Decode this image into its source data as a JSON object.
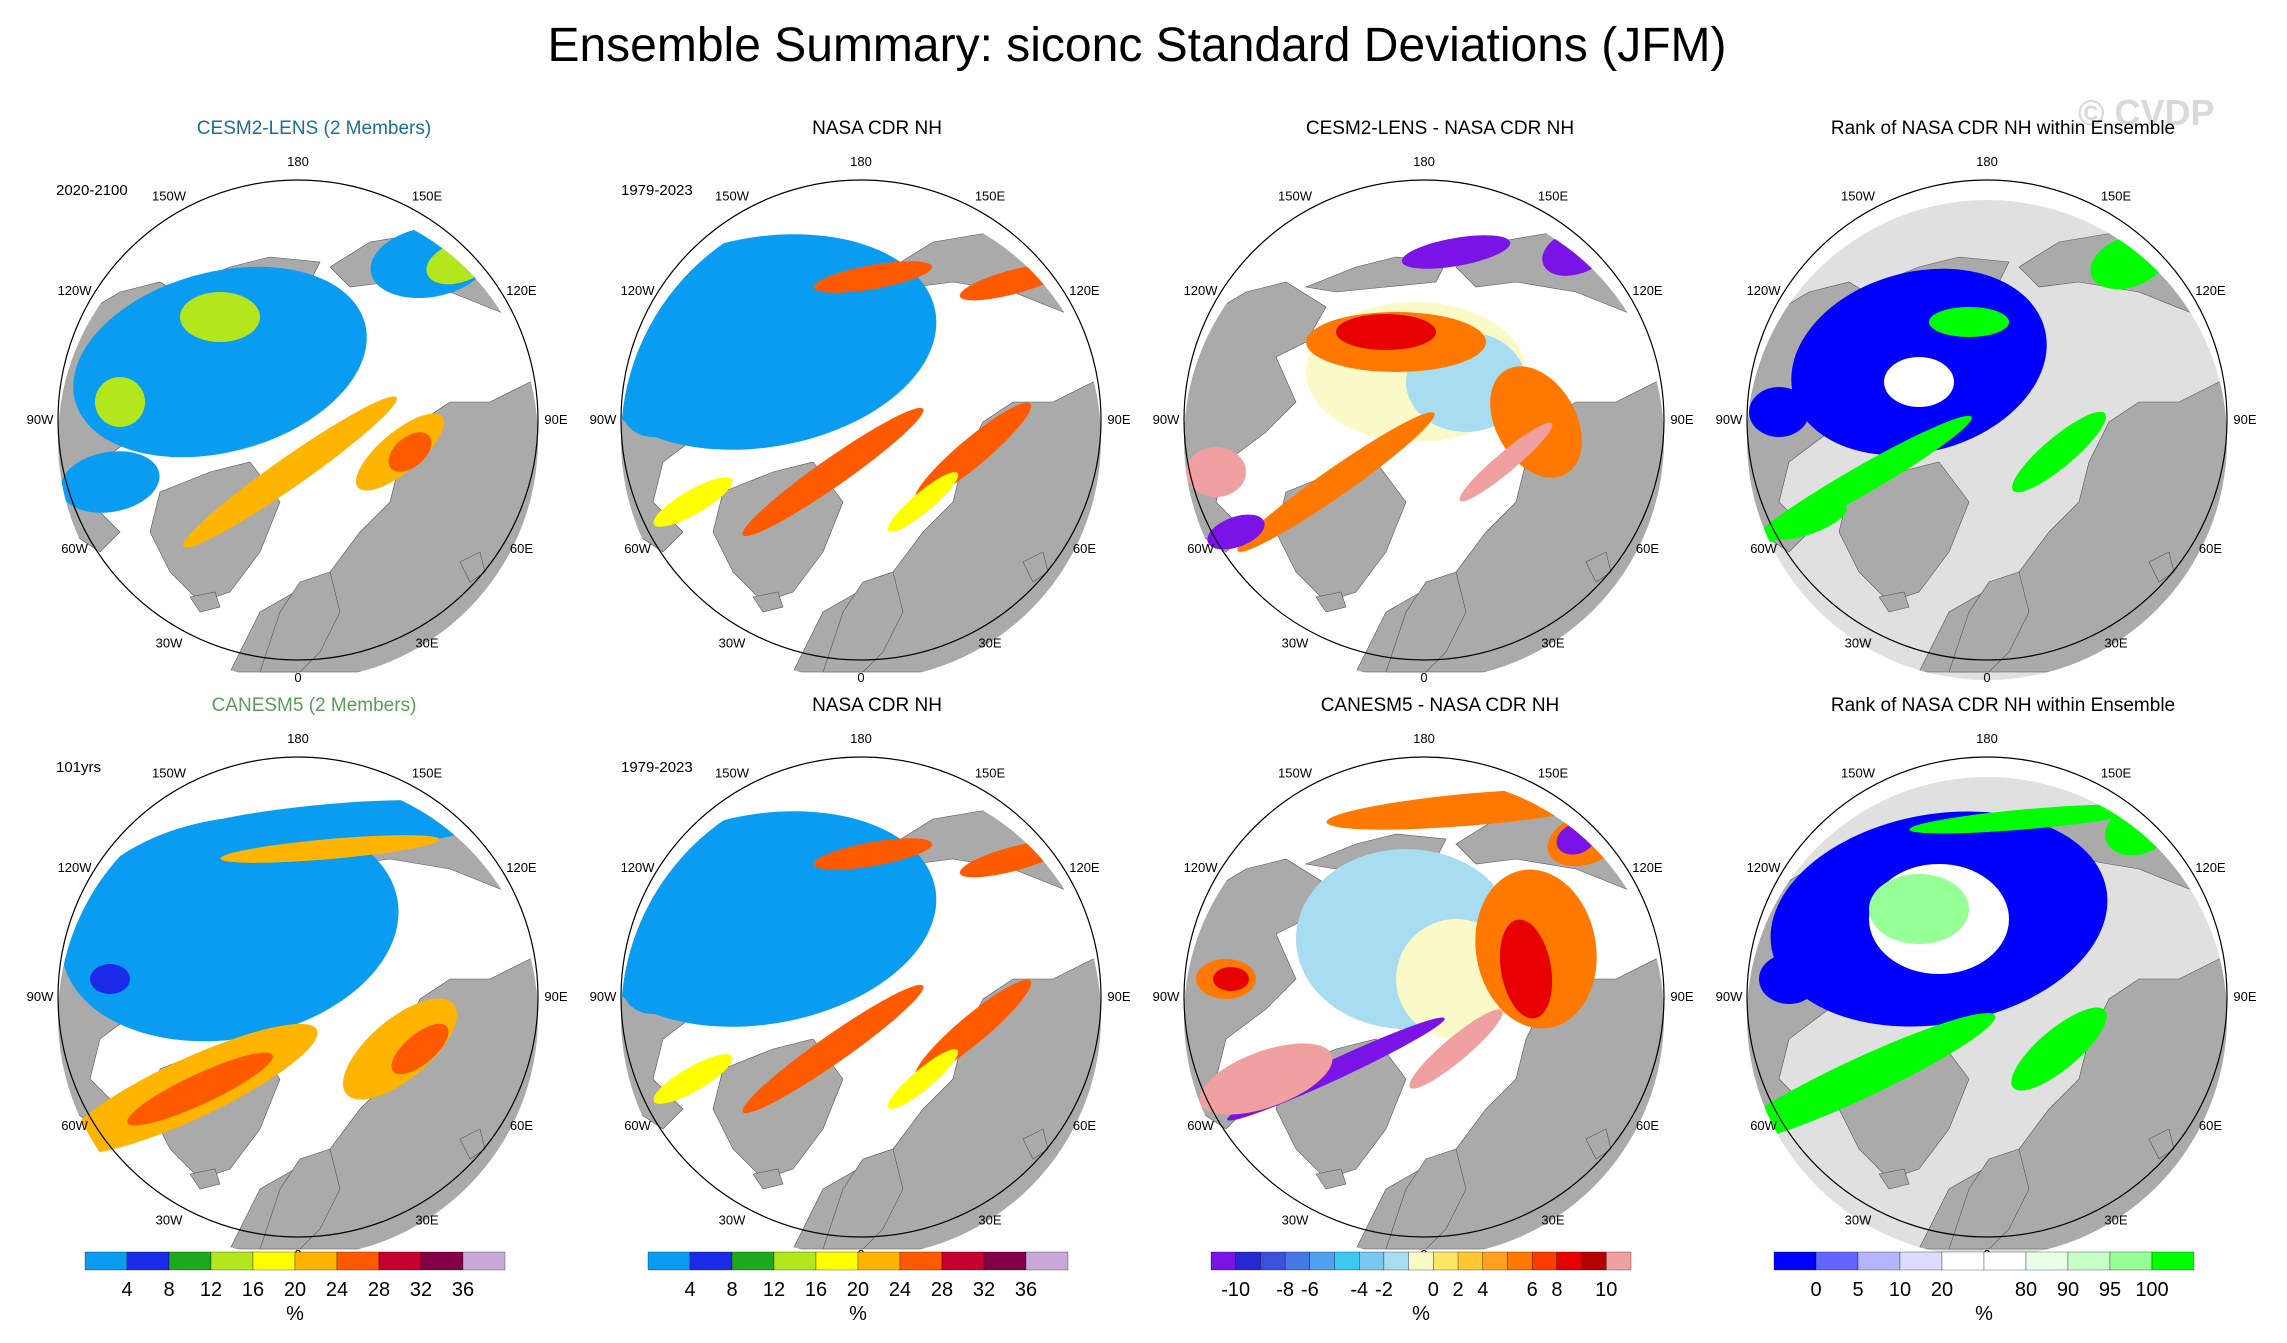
{
  "title": "Ensemble Summary: siconc Standard Deviations (JFM)",
  "watermark": "© CVDP",
  "lon_labels": [
    "180",
    "150E",
    "120E",
    "90E",
    "60E",
    "30E",
    "0",
    "30W",
    "60W",
    "90W",
    "120W",
    "150W"
  ],
  "rows": [
    {
      "panels": [
        {
          "title": "CESM2-LENS (2 Members)",
          "title_color": "#1a6e96",
          "period": "2020-2100",
          "style": "model_a"
        },
        {
          "title": "NASA CDR NH",
          "title_color": "#000000",
          "period": "1979-2023",
          "style": "obs"
        },
        {
          "title": "CESM2-LENS - NASA CDR NH",
          "title_color": "#000000",
          "period": "",
          "style": "diff_a"
        },
        {
          "title": "Rank of NASA CDR NH within Ensemble",
          "title_color": "#000000",
          "period": "",
          "style": "rank_a"
        }
      ]
    },
    {
      "panels": [
        {
          "title": "CANESM5 (2 Members)",
          "title_color": "#5e9a5a",
          "period": "101yrs",
          "style": "model_b"
        },
        {
          "title": "NASA CDR NH",
          "title_color": "#000000",
          "period": "1979-2023",
          "style": "obs"
        },
        {
          "title": "CANESM5 - NASA CDR NH",
          "title_color": "#000000",
          "period": "",
          "style": "diff_b"
        },
        {
          "title": "Rank of NASA CDR NH within Ensemble",
          "title_color": "#000000",
          "period": "",
          "style": "rank_b"
        }
      ]
    }
  ],
  "colorbars": [
    {
      "unit": "%",
      "colors": [
        "#0a9cf0",
        "#1a2ae8",
        "#1ea81e",
        "#b4e61e",
        "#ffff00",
        "#ffb400",
        "#ff5a00",
        "#c8002d",
        "#820046",
        "#c8a8d8"
      ],
      "labels": [
        "4",
        "8",
        "12",
        "16",
        "20",
        "24",
        "28",
        "32",
        "36"
      ]
    },
    {
      "unit": "%",
      "colors": [
        "#0a9cf0",
        "#1a2ae8",
        "#1ea81e",
        "#b4e61e",
        "#ffff00",
        "#ffb400",
        "#ff5a00",
        "#c8002d",
        "#820046",
        "#c8a8d8"
      ],
      "labels": [
        "4",
        "8",
        "12",
        "16",
        "20",
        "24",
        "28",
        "32",
        "36"
      ]
    },
    {
      "unit": "%",
      "colors": [
        "#7a14e6",
        "#2828d2",
        "#3c50dc",
        "#4678e6",
        "#50a0f0",
        "#3cc8f0",
        "#78c8f0",
        "#a8dcf0",
        "#fafac8",
        "#ffe664",
        "#ffc832",
        "#ffa01e",
        "#ff7800",
        "#ff3c00",
        "#e60000",
        "#b40000",
        "#f0a0a0"
      ],
      "labels": [
        "-10",
        "-8",
        "-6",
        "-4",
        "-2",
        "0",
        "2",
        "4",
        "6",
        "8",
        "10"
      ]
    },
    {
      "unit": "%",
      "colors": [
        "#0000ff",
        "#6464ff",
        "#b4b4ff",
        "#dcdcff",
        "#ffffff",
        "#ffffff",
        "#e6ffe6",
        "#c8ffc8",
        "#96ff96",
        "#00ff00"
      ],
      "labels": [
        "0",
        "5",
        "10",
        "20",
        "80",
        "90",
        "95",
        "100"
      ]
    }
  ]
}
